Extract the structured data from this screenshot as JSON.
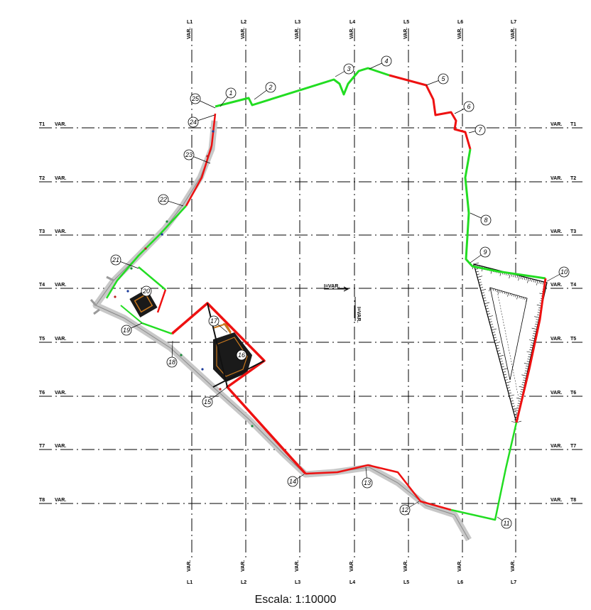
{
  "grid": {
    "columns": [
      "L1",
      "L2",
      "L3",
      "L4",
      "L5",
      "L6",
      "L7"
    ],
    "rows": [
      "T1",
      "T2",
      "T3",
      "T4",
      "T5",
      "T6",
      "T7",
      "T8"
    ],
    "var_label": "VAR."
  },
  "points": [
    "1",
    "2",
    "3",
    "4",
    "5",
    "6",
    "7",
    "8",
    "9",
    "10",
    "11",
    "12",
    "13",
    "14",
    "15",
    "16",
    "17",
    "18",
    "19",
    "20",
    "21",
    "22",
    "23",
    "24",
    "25"
  ],
  "center_marks": {
    "horizontal": "I=VAR.",
    "vertical": "I=VAR."
  },
  "colors": {
    "green": "#22dd22",
    "red": "#ee1111",
    "grid": "#000000",
    "road": "#c8c8c8"
  },
  "scale_label": "Escala: 1:10000"
}
